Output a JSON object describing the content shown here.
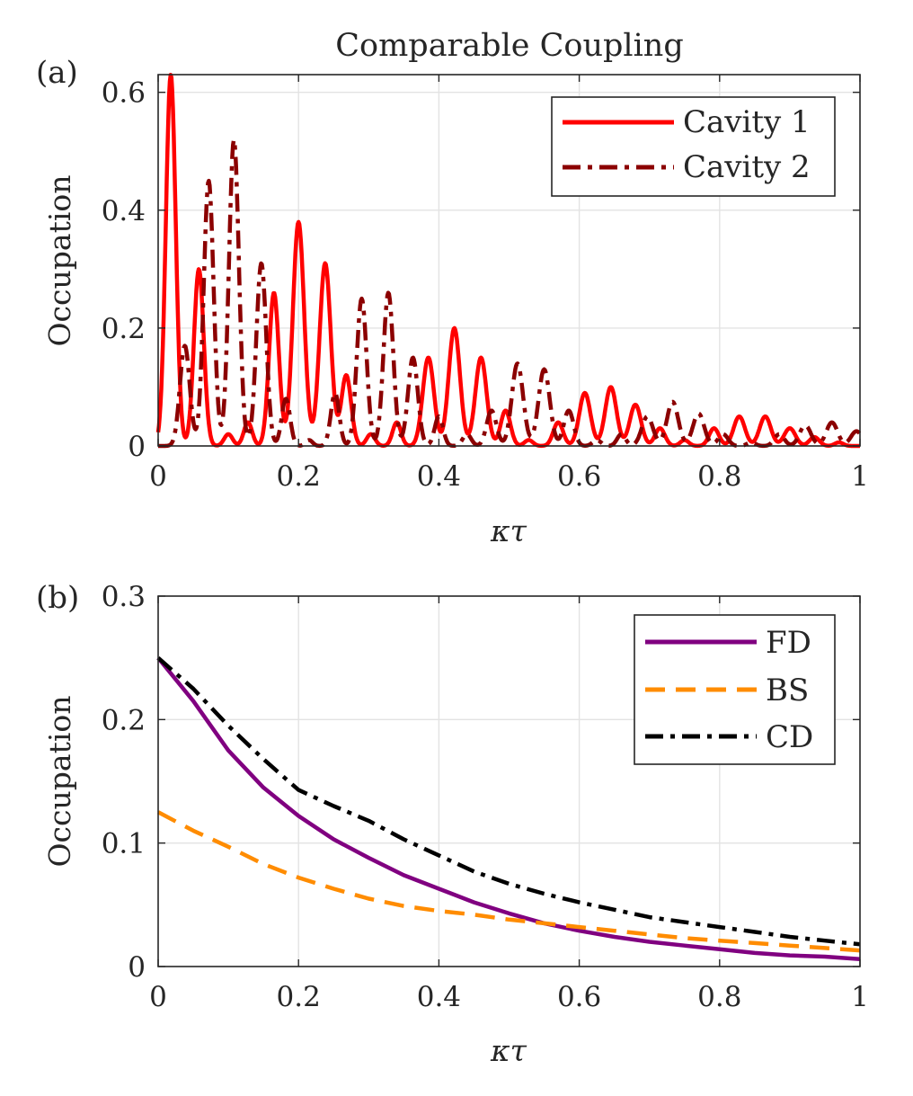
{
  "chart_data": [
    {
      "id": "a",
      "type": "line",
      "panel_label": "(a)",
      "title": "Comparable Coupling",
      "xlabel": "κτ",
      "ylabel": "Occupation",
      "xlim": [
        0,
        1
      ],
      "ylim": [
        0,
        0.63
      ],
      "xticks": [
        0,
        0.2,
        0.4,
        0.6,
        0.8,
        1
      ],
      "xtick_labels": [
        "0",
        "0.2",
        "0.4",
        "0.6",
        "0.8",
        "1"
      ],
      "yticks": [
        0,
        0.2,
        0.4,
        0.6
      ],
      "ytick_labels": [
        "0",
        "0.2",
        "0.4",
        "0.6"
      ],
      "grid": true,
      "legend_position": "top-right",
      "series": [
        {
          "name": "Cavity 1",
          "color": "#ff0000",
          "style": "solid",
          "peaks": [
            [
              0.018,
              0.63,
              0.007
            ],
            [
              0.058,
              0.3,
              0.007
            ],
            [
              0.1,
              0.02,
              0.006
            ],
            [
              0.128,
              0.04,
              0.006
            ],
            [
              0.165,
              0.26,
              0.007
            ],
            [
              0.2,
              0.38,
              0.008
            ],
            [
              0.238,
              0.31,
              0.008
            ],
            [
              0.268,
              0.12,
              0.007
            ],
            [
              0.303,
              0.02,
              0.006
            ],
            [
              0.34,
              0.04,
              0.006
            ],
            [
              0.385,
              0.15,
              0.008
            ],
            [
              0.422,
              0.2,
              0.008
            ],
            [
              0.46,
              0.15,
              0.008
            ],
            [
              0.495,
              0.06,
              0.007
            ],
            [
              0.528,
              0.01,
              0.006
            ],
            [
              0.57,
              0.04,
              0.007
            ],
            [
              0.608,
              0.09,
              0.008
            ],
            [
              0.645,
              0.1,
              0.008
            ],
            [
              0.68,
              0.07,
              0.008
            ],
            [
              0.715,
              0.03,
              0.007
            ],
            [
              0.75,
              0.01,
              0.006
            ],
            [
              0.792,
              0.03,
              0.007
            ],
            [
              0.828,
              0.05,
              0.008
            ],
            [
              0.865,
              0.05,
              0.008
            ],
            [
              0.9,
              0.03,
              0.008
            ],
            [
              0.935,
              0.015,
              0.007
            ],
            [
              0.97,
              0.006,
              0.006
            ]
          ]
        },
        {
          "name": "Cavity 2",
          "color": "#8b0000",
          "style": "dashdot",
          "peaks": [
            [
              0.038,
              0.17,
              0.007
            ],
            [
              0.072,
              0.45,
              0.007
            ],
            [
              0.108,
              0.52,
              0.007
            ],
            [
              0.147,
              0.31,
              0.007
            ],
            [
              0.182,
              0.08,
              0.006
            ],
            [
              0.215,
              0.01,
              0.005
            ],
            [
              0.252,
              0.09,
              0.006
            ],
            [
              0.29,
              0.25,
              0.007
            ],
            [
              0.328,
              0.26,
              0.007
            ],
            [
              0.363,
              0.15,
              0.007
            ],
            [
              0.4,
              0.05,
              0.006
            ],
            [
              0.44,
              0.02,
              0.006
            ],
            [
              0.475,
              0.06,
              0.007
            ],
            [
              0.512,
              0.14,
              0.008
            ],
            [
              0.55,
              0.13,
              0.008
            ],
            [
              0.585,
              0.06,
              0.007
            ],
            [
              0.625,
              0.01,
              0.006
            ],
            [
              0.66,
              0.02,
              0.006
            ],
            [
              0.697,
              0.05,
              0.008
            ],
            [
              0.733,
              0.075,
              0.008
            ],
            [
              0.77,
              0.055,
              0.008
            ],
            [
              0.805,
              0.02,
              0.007
            ],
            [
              0.845,
              0.006,
              0.006
            ],
            [
              0.885,
              0.02,
              0.007
            ],
            [
              0.922,
              0.035,
              0.008
            ],
            [
              0.96,
              0.04,
              0.008
            ],
            [
              0.995,
              0.025,
              0.008
            ]
          ]
        }
      ]
    },
    {
      "id": "b",
      "type": "line",
      "panel_label": "(b)",
      "xlabel": "κτ",
      "ylabel": "Occupation",
      "xlim": [
        0,
        1
      ],
      "ylim": [
        0,
        0.3
      ],
      "xticks": [
        0,
        0.2,
        0.4,
        0.6,
        0.8,
        1
      ],
      "xtick_labels": [
        "0",
        "0.2",
        "0.4",
        "0.6",
        "0.8",
        "1"
      ],
      "yticks": [
        0,
        0.1,
        0.2,
        0.3
      ],
      "ytick_labels": [
        "0",
        "0.1",
        "0.2",
        "0.3"
      ],
      "grid": true,
      "legend_position": "top-right",
      "series": [
        {
          "name": "FD",
          "color": "#800080",
          "style": "solid",
          "x": [
            0,
            0.05,
            0.1,
            0.15,
            0.2,
            0.25,
            0.3,
            0.35,
            0.4,
            0.45,
            0.5,
            0.55,
            0.6,
            0.65,
            0.7,
            0.75,
            0.8,
            0.85,
            0.9,
            0.95,
            1
          ],
          "y": [
            0.25,
            0.215,
            0.175,
            0.145,
            0.122,
            0.103,
            0.088,
            0.074,
            0.063,
            0.052,
            0.043,
            0.035,
            0.029,
            0.024,
            0.02,
            0.017,
            0.014,
            0.011,
            0.009,
            0.008,
            0.006
          ]
        },
        {
          "name": "BS",
          "color": "#ff8c00",
          "style": "dashed",
          "x": [
            0,
            0.05,
            0.1,
            0.15,
            0.2,
            0.25,
            0.3,
            0.35,
            0.4,
            0.45,
            0.5,
            0.55,
            0.6,
            0.65,
            0.7,
            0.75,
            0.8,
            0.85,
            0.9,
            0.95,
            1
          ],
          "y": [
            0.125,
            0.11,
            0.097,
            0.083,
            0.072,
            0.063,
            0.055,
            0.049,
            0.045,
            0.042,
            0.038,
            0.035,
            0.032,
            0.029,
            0.026,
            0.023,
            0.021,
            0.019,
            0.017,
            0.015,
            0.013
          ]
        },
        {
          "name": "CD",
          "color": "#000000",
          "style": "dashdot",
          "x": [
            0,
            0.05,
            0.1,
            0.15,
            0.2,
            0.25,
            0.3,
            0.35,
            0.4,
            0.45,
            0.5,
            0.55,
            0.6,
            0.65,
            0.7,
            0.75,
            0.8,
            0.85,
            0.9,
            0.95,
            1
          ],
          "y": [
            0.25,
            0.225,
            0.195,
            0.168,
            0.143,
            0.13,
            0.118,
            0.103,
            0.09,
            0.077,
            0.067,
            0.059,
            0.052,
            0.046,
            0.04,
            0.036,
            0.032,
            0.028,
            0.024,
            0.021,
            0.018
          ]
        }
      ]
    }
  ]
}
